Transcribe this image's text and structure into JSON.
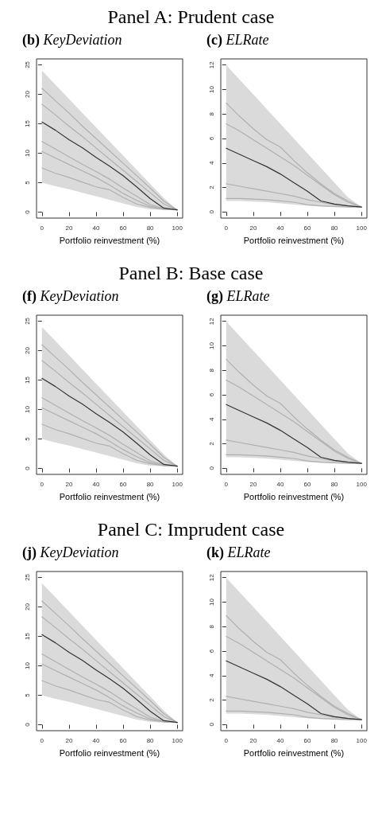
{
  "chart_data": [
    {
      "type": "line",
      "title": "Panel A: Prudent case",
      "subtitle": "(b) KeyDeviation",
      "xlabel": "Portfolio reinvestment (%)",
      "xlim": [
        -4,
        104
      ],
      "xticks": [
        0,
        20,
        40,
        60,
        80,
        100
      ],
      "ylim": [
        -1,
        26
      ],
      "yticks": [
        0,
        5,
        10,
        15,
        20,
        25
      ],
      "grid": false,
      "marker": "none",
      "line_style": "solid",
      "x": [
        0,
        10,
        20,
        30,
        40,
        50,
        60,
        70,
        80,
        90,
        100
      ],
      "series": [
        {
          "color": "#b0b0b0",
          "values": [
            21,
            18.9,
            16.8,
            14.6,
            12.5,
            10.4,
            8.3,
            6.2,
            4.1,
            1.9,
            0.4
          ]
        },
        {
          "color": "#b0b0b0",
          "values": [
            18.3,
            16.5,
            14.6,
            12.8,
            10.9,
            9.0,
            7.1,
            5.2,
            3.3,
            1.4,
            0.4
          ]
        },
        {
          "color": "#b0b0b0",
          "values": [
            12,
            10.7,
            9.4,
            8.1,
            6.9,
            5.6,
            4.1,
            2.7,
            1.3,
            0.6,
            0.4
          ]
        },
        {
          "color": "#b0b0b0",
          "values": [
            10.3,
            9.2,
            8.1,
            7.0,
            5.9,
            4.6,
            3.2,
            2.0,
            1.0,
            0.5,
            0.4
          ]
        },
        {
          "color": "#b0b0b0",
          "values": [
            7.5,
            6.6,
            5.9,
            5.1,
            4.3,
            3.8,
            2.5,
            1.4,
            0.8,
            0.5,
            0.4
          ]
        },
        {
          "color": "#333333",
          "values": [
            15.3,
            13.9,
            12.3,
            10.9,
            9.3,
            7.8,
            6.2,
            4.3,
            2.3,
            0.7,
            0.4
          ],
          "lower": [
            5,
            4.4,
            3.9,
            3.3,
            2.7,
            2.1,
            1.5,
            0.9,
            0.5,
            0.4,
            0.4
          ],
          "upper": [
            24,
            21.6,
            19.2,
            16.8,
            14.4,
            12,
            9.6,
            7.2,
            4.8,
            2.4,
            0.4
          ]
        }
      ]
    },
    {
      "type": "line",
      "subtitle": "(c) ELRate",
      "xlabel": "Portfolio reinvestment (%)",
      "xlim": [
        -4,
        104
      ],
      "xticks": [
        0,
        20,
        40,
        60,
        80,
        100
      ],
      "ylim": [
        -0.5,
        12.5
      ],
      "yticks": [
        0,
        2,
        4,
        6,
        8,
        10,
        12
      ],
      "grid": false,
      "marker": "none",
      "line_style": "solid",
      "x": [
        0,
        10,
        20,
        30,
        40,
        50,
        60,
        70,
        80,
        90,
        100
      ],
      "series": [
        {
          "color": "#b0b0b0",
          "values": [
            8.9,
            7.8,
            6.8,
            5.9,
            5.3,
            4.2,
            3.2,
            2.3,
            1.5,
            0.9,
            0.4
          ]
        },
        {
          "color": "#b0b0b0",
          "values": [
            7.2,
            6.6,
            5.9,
            5.2,
            4.5,
            3.8,
            3.0,
            2.2,
            1.4,
            0.8,
            0.4
          ]
        },
        {
          "color": "#b0b0b0",
          "values": [
            2.3,
            2.1,
            1.9,
            1.7,
            1.5,
            1.3,
            1.0,
            0.8,
            0.6,
            0.5,
            0.4
          ]
        },
        {
          "color": "#b0b0b0",
          "values": [
            1.1,
            1.1,
            1.05,
            1.0,
            0.9,
            0.8,
            0.6,
            0.5,
            0.45,
            0.4,
            0.4
          ]
        },
        {
          "color": "#333333",
          "values": [
            5.2,
            4.7,
            4.2,
            3.7,
            3.1,
            2.4,
            1.7,
            0.9,
            0.65,
            0.5,
            0.4
          ],
          "lower": [
            0.9,
            0.9,
            0.85,
            0.8,
            0.7,
            0.6,
            0.5,
            0.45,
            0.4,
            0.4,
            0.4
          ],
          "upper": [
            12,
            10.8,
            9.6,
            8.4,
            7.2,
            6,
            4.8,
            3.6,
            2.4,
            1.2,
            0.4
          ]
        }
      ]
    },
    {
      "type": "line",
      "title": "Panel B: Base case",
      "subtitle": "(f) KeyDeviation",
      "xlabel": "Portfolio reinvestment (%)",
      "xlim": [
        -4,
        104
      ],
      "xticks": [
        0,
        20,
        40,
        60,
        80,
        100
      ],
      "ylim": [
        -1,
        26
      ],
      "yticks": [
        0,
        5,
        10,
        15,
        20,
        25
      ],
      "grid": false,
      "marker": "none",
      "line_style": "solid",
      "x": [
        0,
        10,
        20,
        30,
        40,
        50,
        60,
        70,
        80,
        90,
        100
      ],
      "series": [
        {
          "color": "#b0b0b0",
          "values": [
            21,
            18.9,
            16.8,
            14.6,
            12.5,
            10.4,
            8.3,
            6.2,
            4.1,
            1.9,
            0.4
          ]
        },
        {
          "color": "#b0b0b0",
          "values": [
            18.3,
            16.5,
            14.6,
            12.8,
            10.9,
            9.0,
            7.1,
            5.2,
            3.3,
            1.4,
            0.4
          ]
        },
        {
          "color": "#b0b0b0",
          "values": [
            12,
            10.7,
            9.4,
            8.1,
            6.9,
            5.6,
            4.1,
            2.7,
            1.3,
            0.6,
            0.4
          ]
        },
        {
          "color": "#b0b0b0",
          "values": [
            10.3,
            9.2,
            8.1,
            7.0,
            5.9,
            4.6,
            3.2,
            2.0,
            1.0,
            0.5,
            0.4
          ]
        },
        {
          "color": "#b0b0b0",
          "values": [
            7.5,
            6.6,
            5.9,
            5.1,
            4.3,
            3.8,
            2.5,
            1.4,
            0.8,
            0.5,
            0.4
          ]
        },
        {
          "color": "#333333",
          "values": [
            15.3,
            13.9,
            12.3,
            10.9,
            9.3,
            7.8,
            6.2,
            4.3,
            2.3,
            0.7,
            0.4
          ],
          "lower": [
            5,
            4.4,
            3.9,
            3.3,
            2.7,
            2.1,
            1.5,
            0.9,
            0.5,
            0.4,
            0.4
          ],
          "upper": [
            24,
            21.6,
            19.2,
            16.8,
            14.4,
            12,
            9.6,
            7.2,
            4.8,
            2.4,
            0.4
          ]
        }
      ]
    },
    {
      "type": "line",
      "subtitle": "(g) ELRate",
      "xlabel": "Portfolio reinvestment (%)",
      "xlim": [
        -4,
        104
      ],
      "xticks": [
        0,
        20,
        40,
        60,
        80,
        100
      ],
      "ylim": [
        -0.5,
        12.5
      ],
      "yticks": [
        0,
        2,
        4,
        6,
        8,
        10,
        12
      ],
      "grid": false,
      "marker": "none",
      "line_style": "solid",
      "x": [
        0,
        10,
        20,
        30,
        40,
        50,
        60,
        70,
        80,
        90,
        100
      ],
      "series": [
        {
          "color": "#b0b0b0",
          "values": [
            8.9,
            7.8,
            6.8,
            5.9,
            5.3,
            4.2,
            3.2,
            2.3,
            1.5,
            0.9,
            0.4
          ]
        },
        {
          "color": "#b0b0b0",
          "values": [
            7.2,
            6.6,
            5.9,
            5.2,
            4.5,
            3.8,
            3.0,
            2.2,
            1.4,
            0.8,
            0.4
          ]
        },
        {
          "color": "#b0b0b0",
          "values": [
            2.3,
            2.1,
            1.9,
            1.7,
            1.5,
            1.3,
            1.0,
            0.8,
            0.6,
            0.5,
            0.4
          ]
        },
        {
          "color": "#b0b0b0",
          "values": [
            1.1,
            1.1,
            1.05,
            1.0,
            0.9,
            0.8,
            0.6,
            0.5,
            0.45,
            0.4,
            0.4
          ]
        },
        {
          "color": "#333333",
          "values": [
            5.2,
            4.7,
            4.2,
            3.7,
            3.1,
            2.4,
            1.7,
            0.9,
            0.65,
            0.5,
            0.4
          ],
          "lower": [
            0.9,
            0.9,
            0.85,
            0.8,
            0.7,
            0.6,
            0.5,
            0.45,
            0.4,
            0.4,
            0.4
          ],
          "upper": [
            12,
            10.8,
            9.6,
            8.4,
            7.2,
            6,
            4.8,
            3.6,
            2.4,
            1.2,
            0.4
          ]
        }
      ]
    },
    {
      "type": "line",
      "title": "Panel C: Imprudent case",
      "subtitle": "(j) KeyDeviation",
      "xlabel": "Portfolio reinvestment (%)",
      "xlim": [
        -4,
        104
      ],
      "xticks": [
        0,
        20,
        40,
        60,
        80,
        100
      ],
      "ylim": [
        -1,
        26
      ],
      "yticks": [
        0,
        5,
        10,
        15,
        20,
        25
      ],
      "grid": false,
      "marker": "none",
      "line_style": "solid",
      "x": [
        0,
        10,
        20,
        30,
        40,
        50,
        60,
        70,
        80,
        90,
        100
      ],
      "series": [
        {
          "color": "#b0b0b0",
          "values": [
            21,
            18.9,
            16.8,
            14.6,
            12.5,
            10.4,
            8.3,
            6.2,
            4.1,
            1.9,
            0.4
          ]
        },
        {
          "color": "#b0b0b0",
          "values": [
            18.3,
            16.5,
            14.6,
            12.8,
            10.9,
            9.0,
            7.1,
            5.2,
            3.3,
            1.4,
            0.4
          ]
        },
        {
          "color": "#b0b0b0",
          "values": [
            12,
            10.7,
            9.4,
            8.1,
            6.9,
            5.6,
            4.1,
            2.7,
            1.3,
            0.6,
            0.4
          ]
        },
        {
          "color": "#b0b0b0",
          "values": [
            10.3,
            9.2,
            8.1,
            7.0,
            5.9,
            4.6,
            3.2,
            2.0,
            1.0,
            0.5,
            0.4
          ]
        },
        {
          "color": "#b0b0b0",
          "values": [
            7.5,
            6.6,
            5.9,
            5.1,
            4.3,
            3.8,
            2.5,
            1.4,
            0.8,
            0.5,
            0.4
          ]
        },
        {
          "color": "#333333",
          "values": [
            15.3,
            13.9,
            12.3,
            10.9,
            9.3,
            7.8,
            6.2,
            4.3,
            2.3,
            0.7,
            0.4
          ],
          "lower": [
            5,
            4.4,
            3.9,
            3.3,
            2.7,
            2.1,
            1.5,
            0.9,
            0.5,
            0.4,
            0.4
          ],
          "upper": [
            24,
            21.6,
            19.2,
            16.8,
            14.4,
            12,
            9.6,
            7.2,
            4.8,
            2.4,
            0.4
          ]
        }
      ]
    },
    {
      "type": "line",
      "subtitle": "(k) ELRate",
      "xlabel": "Portfolio reinvestment (%)",
      "xlim": [
        -4,
        104
      ],
      "xticks": [
        0,
        20,
        40,
        60,
        80,
        100
      ],
      "ylim": [
        -0.5,
        12.5
      ],
      "yticks": [
        0,
        2,
        4,
        6,
        8,
        10,
        12
      ],
      "grid": false,
      "marker": "none",
      "line_style": "solid",
      "x": [
        0,
        10,
        20,
        30,
        40,
        50,
        60,
        70,
        80,
        90,
        100
      ],
      "series": [
        {
          "color": "#b0b0b0",
          "values": [
            8.9,
            7.8,
            6.8,
            5.9,
            5.3,
            4.2,
            3.2,
            2.3,
            1.5,
            0.9,
            0.4
          ]
        },
        {
          "color": "#b0b0b0",
          "values": [
            7.2,
            6.6,
            5.9,
            5.2,
            4.5,
            3.8,
            3.0,
            2.2,
            1.4,
            0.8,
            0.4
          ]
        },
        {
          "color": "#b0b0b0",
          "values": [
            2.3,
            2.1,
            1.9,
            1.7,
            1.5,
            1.3,
            1.0,
            0.8,
            0.6,
            0.5,
            0.4
          ]
        },
        {
          "color": "#b0b0b0",
          "values": [
            1.1,
            1.1,
            1.05,
            1.0,
            0.9,
            0.8,
            0.6,
            0.5,
            0.45,
            0.4,
            0.4
          ]
        },
        {
          "color": "#333333",
          "values": [
            5.2,
            4.7,
            4.2,
            3.7,
            3.1,
            2.4,
            1.7,
            0.9,
            0.65,
            0.5,
            0.4
          ],
          "lower": [
            0.9,
            0.9,
            0.85,
            0.8,
            0.7,
            0.6,
            0.5,
            0.45,
            0.4,
            0.4,
            0.4
          ],
          "upper": [
            12,
            10.8,
            9.6,
            8.4,
            7.2,
            6,
            4.8,
            3.6,
            2.4,
            1.2,
            0.4
          ]
        }
      ]
    }
  ]
}
